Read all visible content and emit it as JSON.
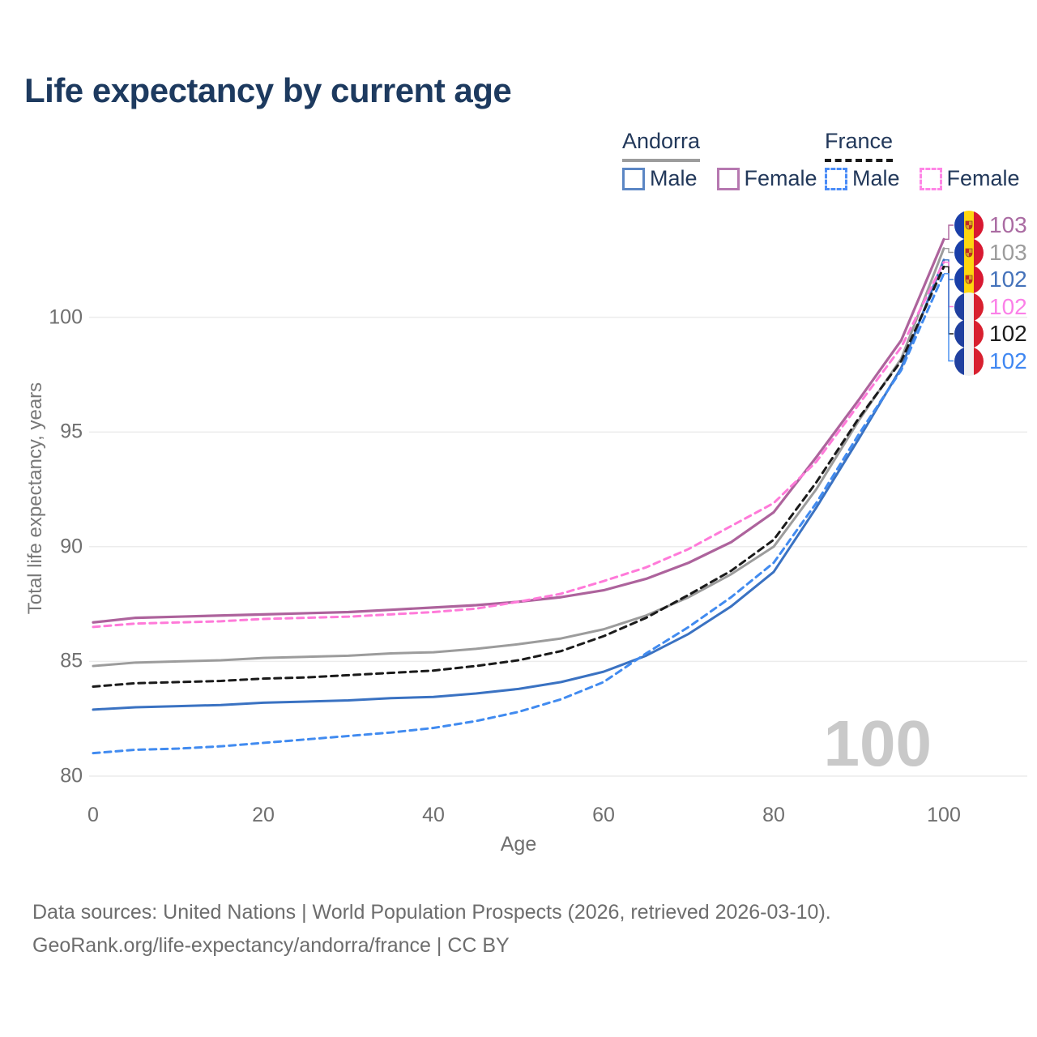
{
  "title": "Life expectancy by current age",
  "legend": {
    "groups": [
      {
        "country": "Andorra",
        "underline_style": "solid",
        "underline_color": "#9c9c9c",
        "items": [
          {
            "label": "Male",
            "color": "#5b86c4",
            "dashed": false
          },
          {
            "label": "Female",
            "color": "#b678b0",
            "dashed": false
          }
        ]
      },
      {
        "country": "France",
        "underline_style": "dashed",
        "underline_color": "#1a1a1a",
        "items": [
          {
            "label": "Male",
            "color": "#4a8cf7",
            "dashed": true
          },
          {
            "label": "Female",
            "color": "#ff85e6",
            "dashed": true
          }
        ]
      }
    ]
  },
  "axes": {
    "y_label": "Total life expectancy, years",
    "x_label": "Age",
    "y_ticks": [
      100,
      95,
      90,
      85,
      80
    ],
    "x_ticks": [
      0,
      20,
      40,
      60,
      80,
      100
    ]
  },
  "watermark": "100",
  "footer": {
    "line1": "Data sources: United Nations | World Population Prospects (2026, retrieved 2026-03-10).",
    "line2": "GeoRank.org/life-expectancy/andorra/france | CC BY"
  },
  "chart_data": {
    "type": "line",
    "title": "Life expectancy by current age",
    "xlabel": "Age",
    "ylabel": "Total life expectancy, years",
    "xlim": [
      0,
      100
    ],
    "ylim": [
      80,
      103.5
    ],
    "grid": "horizontal",
    "legend_position": "top-right",
    "x": [
      0,
      5,
      10,
      15,
      20,
      25,
      30,
      35,
      40,
      45,
      50,
      55,
      60,
      65,
      70,
      75,
      80,
      85,
      90,
      95,
      100
    ],
    "series": [
      {
        "name": "Andorra Female",
        "country": "andorra",
        "sex": "Female",
        "color": "#ad639c",
        "dash": "solid",
        "width": 3.2,
        "end_label": "103",
        "end_label_color": "#aa6ba2",
        "values": [
          86.7,
          86.9,
          86.95,
          87.0,
          87.05,
          87.1,
          87.15,
          87.25,
          87.35,
          87.45,
          87.6,
          87.8,
          88.1,
          88.6,
          89.3,
          90.2,
          91.5,
          93.9,
          96.4,
          99.0,
          103.4
        ]
      },
      {
        "name": "Andorra Both sexes",
        "country": "andorra",
        "sex": "Both",
        "color": "#9c9c9c",
        "dash": "solid",
        "width": 3,
        "end_label": "103",
        "end_label_color": "#9c9c9c",
        "values": [
          84.8,
          84.95,
          85.0,
          85.05,
          85.15,
          85.2,
          85.25,
          85.35,
          85.4,
          85.55,
          85.75,
          86.0,
          86.4,
          87.0,
          87.8,
          88.8,
          90.0,
          92.5,
          95.5,
          98.2,
          103.0
        ]
      },
      {
        "name": "Andorra Male",
        "country": "andorra",
        "sex": "Male",
        "color": "#3a72c2",
        "dash": "solid",
        "width": 3,
        "end_label": "102",
        "end_label_color": "#4472ba",
        "values": [
          82.9,
          83.0,
          83.05,
          83.1,
          83.2,
          83.25,
          83.3,
          83.4,
          83.45,
          83.6,
          83.8,
          84.1,
          84.55,
          85.25,
          86.2,
          87.4,
          88.9,
          91.7,
          94.7,
          97.8,
          102.5
        ]
      },
      {
        "name": "France Female",
        "country": "france",
        "sex": "Female",
        "color": "#ff7ad9",
        "dash": "dashed",
        "width": 3,
        "end_label": "102",
        "end_label_color": "#fb80e8",
        "values": [
          86.5,
          86.65,
          86.7,
          86.75,
          86.85,
          86.9,
          86.95,
          87.05,
          87.15,
          87.3,
          87.6,
          87.95,
          88.5,
          89.1,
          89.9,
          90.9,
          91.9,
          93.7,
          96.2,
          98.7,
          102.4
        ]
      },
      {
        "name": "France Both sexes",
        "country": "france",
        "sex": "Both",
        "color": "#1a1a1a",
        "dash": "dashed",
        "width": 3,
        "end_label": "102",
        "end_label_color": "#1c1c1c",
        "values": [
          83.9,
          84.05,
          84.1,
          84.15,
          84.25,
          84.3,
          84.4,
          84.5,
          84.6,
          84.8,
          85.05,
          85.45,
          86.1,
          86.9,
          87.9,
          88.95,
          90.3,
          92.8,
          95.6,
          98.1,
          102.2
        ]
      },
      {
        "name": "France Male",
        "country": "france",
        "sex": "Male",
        "color": "#418bf0",
        "dash": "dashed",
        "width": 3,
        "end_label": "102",
        "end_label_color": "#3f87f2",
        "values": [
          81.0,
          81.15,
          81.2,
          81.3,
          81.45,
          81.6,
          81.75,
          81.9,
          82.1,
          82.4,
          82.8,
          83.35,
          84.1,
          85.35,
          86.5,
          87.8,
          89.3,
          91.9,
          94.9,
          97.7,
          101.9
        ]
      }
    ]
  }
}
